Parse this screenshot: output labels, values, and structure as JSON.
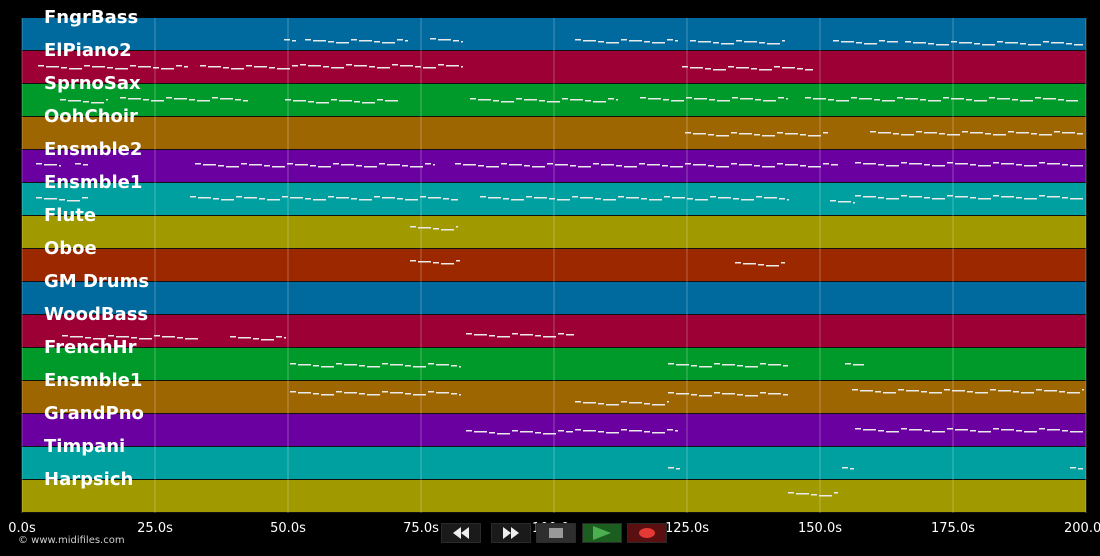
{
  "credit": "© www.midifiles.com",
  "tracks": [
    {
      "name": "FngrBass",
      "color": "#006a9e",
      "notes": [
        [
          284,
          298,
          40
        ],
        [
          305,
          410,
          40
        ],
        [
          430,
          462,
          39
        ],
        [
          575,
          680,
          40
        ],
        [
          690,
          787,
          41
        ],
        [
          833,
          900,
          41
        ],
        [
          905,
          1085,
          42
        ]
      ]
    },
    {
      "name": "ElPiano2",
      "color": "#9c0034",
      "notes": [
        [
          38,
          190,
          66
        ],
        [
          200,
          300,
          66
        ],
        [
          300,
          465,
          65
        ],
        [
          682,
          815,
          67
        ]
      ]
    },
    {
      "name": "SprnoSax",
      "color": "#009a2a",
      "notes": [
        [
          60,
          110,
          100
        ],
        [
          120,
          250,
          98
        ],
        [
          285,
          400,
          100
        ],
        [
          470,
          620,
          99
        ],
        [
          640,
          790,
          98
        ],
        [
          805,
          1080,
          98
        ]
      ]
    },
    {
      "name": "OohChoir",
      "color": "#9e6600",
      "notes": [
        [
          685,
          830,
          133
        ],
        [
          870,
          1085,
          132
        ]
      ]
    },
    {
      "name": "Ensmble2",
      "color": "#6a00a0",
      "notes": [
        [
          36,
          60,
          164
        ],
        [
          75,
          90,
          164
        ],
        [
          195,
          435,
          164
        ],
        [
          455,
          840,
          164
        ],
        [
          855,
          1085,
          163
        ]
      ]
    },
    {
      "name": "Ensmble1",
      "color": "#00a0a0",
      "notes": [
        [
          36,
          90,
          198
        ],
        [
          190,
          460,
          197
        ],
        [
          480,
          790,
          197
        ],
        [
          830,
          855,
          201
        ],
        [
          855,
          1085,
          196
        ]
      ]
    },
    {
      "name": "Flute",
      "color": "#a09a00",
      "notes": [
        [
          410,
          460,
          227
        ]
      ]
    },
    {
      "name": "Oboe",
      "color": "#9c2800",
      "notes": [
        [
          410,
          462,
          261
        ],
        [
          735,
          787,
          263
        ]
      ]
    },
    {
      "name": "GM Drums",
      "color": "#006a9e",
      "notes": []
    },
    {
      "name": "WoodBass",
      "color": "#9c0034",
      "notes": [
        [
          62,
          200,
          336
        ],
        [
          230,
          285,
          337
        ],
        [
          466,
          576,
          334
        ]
      ]
    },
    {
      "name": "FrenchHr",
      "color": "#009a2a",
      "notes": [
        [
          290,
          462,
          364
        ],
        [
          668,
          790,
          364
        ],
        [
          845,
          866,
          364
        ]
      ]
    },
    {
      "name": "Ensmble1",
      "color": "#9e6600",
      "notes": [
        [
          290,
          462,
          392
        ],
        [
          575,
          668,
          402
        ],
        [
          668,
          790,
          393
        ],
        [
          852,
          1085,
          390
        ]
      ]
    },
    {
      "name": "GrandPno",
      "color": "#6a00a0",
      "notes": [
        [
          466,
          575,
          431
        ],
        [
          575,
          680,
          430
        ],
        [
          855,
          1085,
          429
        ]
      ]
    },
    {
      "name": "Timpani",
      "color": "#00a0a0",
      "notes": [
        [
          668,
          682,
          468
        ],
        [
          842,
          856,
          468
        ],
        [
          1070,
          1085,
          468
        ]
      ]
    },
    {
      "name": "Harpsich",
      "color": "#a09a00",
      "notes": [
        [
          788,
          840,
          493
        ]
      ]
    }
  ],
  "time_ticks": [
    "0.0s",
    "25.0s",
    "50.0s",
    "75.0s",
    "100.0s",
    "125.0s",
    "150.0s",
    "175.0s",
    "200.0s"
  ],
  "transport": [
    {
      "name": "rewind-button",
      "icon": "rewind-icon"
    },
    {
      "name": "fast-forward-button",
      "icon": "fast-forward-icon"
    },
    {
      "name": "stop-button",
      "icon": "stop-icon"
    },
    {
      "name": "play-button",
      "icon": "play-icon"
    },
    {
      "name": "record-button",
      "icon": "record-icon"
    }
  ]
}
